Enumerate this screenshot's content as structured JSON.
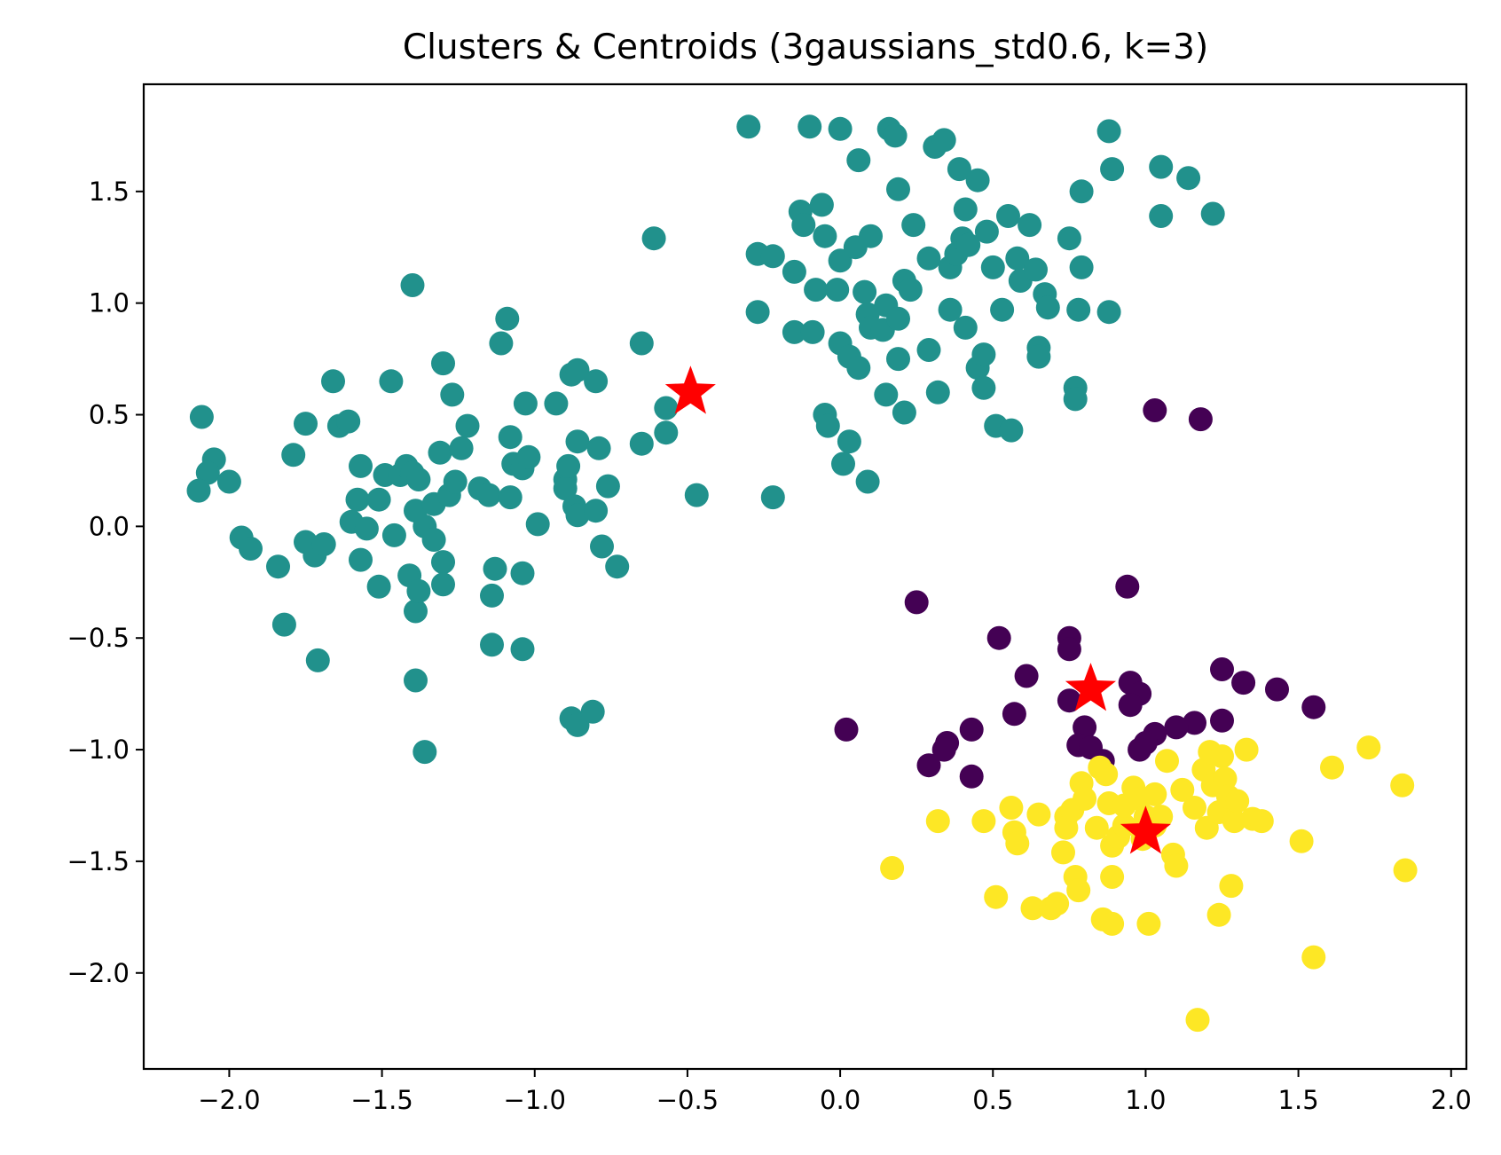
{
  "chart_data": {
    "type": "scatter",
    "title": "Clusters & Centroids (3gaussians_std0.6, k=3)",
    "xlabel": "",
    "ylabel": "",
    "xlim": [
      -2.28,
      2.05
    ],
    "ylim": [
      -2.43,
      1.98
    ],
    "xticks": [
      -2.0,
      -1.5,
      -1.0,
      -0.5,
      0.0,
      0.5,
      1.0,
      1.5,
      2.0
    ],
    "xtick_labels": [
      "−2.0",
      "−1.5",
      "−1.0",
      "−0.5",
      "0.0",
      "0.5",
      "1.0",
      "1.5",
      "2.0"
    ],
    "yticks": [
      -2.0,
      -1.5,
      -1.0,
      -0.5,
      0.0,
      0.5,
      1.0,
      1.5
    ],
    "ytick_labels": [
      "−2.0",
      "−1.5",
      "−1.0",
      "−0.5",
      "0.0",
      "0.5",
      "1.0",
      "1.5"
    ],
    "grid": false,
    "colors": {
      "cluster_0": "#440154",
      "cluster_1": "#21918c",
      "cluster_2": "#fde725",
      "centroid": "#ff0000"
    },
    "clusters": [
      {
        "color_key": "cluster_0",
        "points": [
          [
            1.03,
            0.52
          ],
          [
            1.18,
            0.48
          ],
          [
            0.94,
            -0.27
          ],
          [
            0.25,
            -0.34
          ],
          [
            0.52,
            -0.5
          ],
          [
            0.75,
            -0.5
          ],
          [
            0.75,
            -0.55
          ],
          [
            0.61,
            -0.67
          ],
          [
            0.57,
            -0.84
          ],
          [
            0.02,
            -0.91
          ],
          [
            0.75,
            -0.78
          ],
          [
            0.8,
            -0.9
          ],
          [
            0.78,
            -0.98
          ],
          [
            0.82,
            -0.99
          ],
          [
            0.95,
            -0.7
          ],
          [
            0.98,
            -0.75
          ],
          [
            0.95,
            -0.8
          ],
          [
            1.25,
            -0.64
          ],
          [
            1.32,
            -0.7
          ],
          [
            1.43,
            -0.73
          ],
          [
            1.55,
            -0.81
          ],
          [
            1.25,
            -0.87
          ],
          [
            1.16,
            -0.88
          ],
          [
            1.1,
            -0.9
          ],
          [
            1.03,
            -0.93
          ],
          [
            1.0,
            -0.97
          ],
          [
            0.98,
            -1.0
          ],
          [
            0.43,
            -0.91
          ],
          [
            0.35,
            -0.97
          ],
          [
            0.34,
            -1.0
          ],
          [
            0.29,
            -1.07
          ],
          [
            0.43,
            -1.12
          ],
          [
            0.86,
            -1.05
          ]
        ]
      },
      {
        "color_key": "cluster_1",
        "points": [
          [
            -2.09,
            0.49
          ],
          [
            -2.05,
            0.3
          ],
          [
            -2.07,
            0.24
          ],
          [
            -2.1,
            0.16
          ],
          [
            -2.0,
            0.2
          ],
          [
            -1.96,
            -0.05
          ],
          [
            -1.93,
            -0.1
          ],
          [
            -1.79,
            0.32
          ],
          [
            -1.75,
            0.46
          ],
          [
            -1.82,
            -0.44
          ],
          [
            -1.84,
            -0.18
          ],
          [
            -1.75,
            -0.07
          ],
          [
            -1.72,
            -0.13
          ],
          [
            -1.69,
            -0.08
          ],
          [
            -1.71,
            -0.6
          ],
          [
            -1.66,
            0.65
          ],
          [
            -1.64,
            0.45
          ],
          [
            -1.61,
            0.47
          ],
          [
            -1.57,
            0.27
          ],
          [
            -1.58,
            0.12
          ],
          [
            -1.6,
            0.02
          ],
          [
            -1.55,
            -0.01
          ],
          [
            -1.57,
            -0.15
          ],
          [
            -1.51,
            0.12
          ],
          [
            -1.51,
            -0.27
          ],
          [
            -1.49,
            0.23
          ],
          [
            -1.47,
            0.65
          ],
          [
            -1.46,
            -0.04
          ],
          [
            -1.44,
            0.23
          ],
          [
            -1.42,
            0.27
          ],
          [
            -1.4,
            0.24
          ],
          [
            -1.38,
            0.21
          ],
          [
            -1.41,
            -0.22
          ],
          [
            -1.39,
            -0.38
          ],
          [
            -1.38,
            -0.29
          ],
          [
            -1.39,
            -0.69
          ],
          [
            -1.36,
            -1.01
          ],
          [
            -1.4,
            1.08
          ],
          [
            -1.39,
            0.07
          ],
          [
            -1.36,
            0.0
          ],
          [
            -1.33,
            0.1
          ],
          [
            -1.33,
            -0.06
          ],
          [
            -1.31,
            0.33
          ],
          [
            -1.3,
            0.73
          ],
          [
            -1.3,
            -0.16
          ],
          [
            -1.3,
            -0.26
          ],
          [
            -1.28,
            0.14
          ],
          [
            -1.27,
            0.59
          ],
          [
            -1.26,
            0.2
          ],
          [
            -1.24,
            0.35
          ],
          [
            -1.22,
            0.45
          ],
          [
            -1.18,
            0.17
          ],
          [
            -1.15,
            0.14
          ],
          [
            -1.13,
            -0.19
          ],
          [
            -1.14,
            -0.31
          ],
          [
            -1.14,
            -0.53
          ],
          [
            -1.11,
            0.82
          ],
          [
            -1.09,
            0.93
          ],
          [
            -1.08,
            0.4
          ],
          [
            -1.07,
            0.28
          ],
          [
            -1.08,
            0.13
          ],
          [
            -1.04,
            0.26
          ],
          [
            -1.03,
            0.55
          ],
          [
            -1.04,
            -0.21
          ],
          [
            -1.04,
            -0.55
          ],
          [
            -1.02,
            0.31
          ],
          [
            -0.99,
            0.01
          ],
          [
            -0.93,
            0.55
          ],
          [
            -0.9,
            0.21
          ],
          [
            -0.9,
            0.17
          ],
          [
            -0.89,
            0.27
          ],
          [
            -0.87,
            0.09
          ],
          [
            -0.86,
            0.05
          ],
          [
            -0.86,
            0.38
          ],
          [
            -0.88,
            0.68
          ],
          [
            -0.86,
            0.7
          ],
          [
            -0.8,
            0.65
          ],
          [
            -0.8,
            0.07
          ],
          [
            -0.79,
            0.35
          ],
          [
            -0.78,
            -0.09
          ],
          [
            -0.76,
            0.18
          ],
          [
            -0.73,
            -0.18
          ],
          [
            -0.88,
            -0.86
          ],
          [
            -0.86,
            -0.89
          ],
          [
            -0.81,
            -0.83
          ],
          [
            -0.65,
            0.82
          ],
          [
            -0.65,
            0.37
          ],
          [
            -0.61,
            1.29
          ],
          [
            -0.57,
            0.53
          ],
          [
            -0.57,
            0.42
          ],
          [
            -0.47,
            0.14
          ],
          [
            -0.3,
            1.79
          ],
          [
            -0.27,
            1.22
          ],
          [
            -0.27,
            0.96
          ],
          [
            -0.22,
            1.21
          ],
          [
            -0.22,
            0.13
          ],
          [
            -0.15,
            1.14
          ],
          [
            -0.15,
            0.87
          ],
          [
            -0.13,
            1.41
          ],
          [
            -0.12,
            1.35
          ],
          [
            -0.1,
            1.79
          ],
          [
            -0.09,
            0.87
          ],
          [
            -0.08,
            1.06
          ],
          [
            -0.06,
            1.44
          ],
          [
            -0.05,
            1.3
          ],
          [
            -0.05,
            0.5
          ],
          [
            -0.04,
            0.45
          ],
          [
            -0.01,
            1.06
          ],
          [
            0.0,
            1.78
          ],
          [
            0.0,
            1.19
          ],
          [
            0.0,
            0.82
          ],
          [
            0.01,
            0.28
          ],
          [
            0.03,
            0.38
          ],
          [
            0.03,
            0.76
          ],
          [
            0.05,
            1.25
          ],
          [
            0.06,
            1.64
          ],
          [
            0.06,
            0.71
          ],
          [
            0.08,
            1.05
          ],
          [
            0.09,
            0.95
          ],
          [
            0.1,
            0.89
          ],
          [
            0.09,
            0.2
          ],
          [
            0.1,
            1.3
          ],
          [
            0.14,
            0.88
          ],
          [
            0.15,
            0.59
          ],
          [
            0.16,
            1.78
          ],
          [
            0.15,
            0.99
          ],
          [
            0.18,
            1.75
          ],
          [
            0.19,
            1.51
          ],
          [
            0.19,
            0.93
          ],
          [
            0.19,
            0.75
          ],
          [
            0.21,
            0.51
          ],
          [
            0.21,
            1.1
          ],
          [
            0.23,
            1.06
          ],
          [
            0.24,
            1.35
          ],
          [
            0.29,
            0.79
          ],
          [
            0.29,
            1.2
          ],
          [
            0.31,
            1.7
          ],
          [
            0.32,
            0.6
          ],
          [
            0.34,
            1.73
          ],
          [
            0.36,
            0.97
          ],
          [
            0.36,
            1.16
          ],
          [
            0.38,
            1.22
          ],
          [
            0.39,
            1.6
          ],
          [
            0.4,
            1.29
          ],
          [
            0.41,
            0.89
          ],
          [
            0.41,
            1.42
          ],
          [
            0.42,
            1.26
          ],
          [
            0.45,
            1.55
          ],
          [
            0.45,
            0.71
          ],
          [
            0.47,
            0.77
          ],
          [
            0.47,
            0.62
          ],
          [
            0.48,
            1.32
          ],
          [
            0.5,
            1.16
          ],
          [
            0.51,
            0.45
          ],
          [
            0.53,
            0.97
          ],
          [
            0.55,
            1.39
          ],
          [
            0.56,
            0.43
          ],
          [
            0.58,
            1.2
          ],
          [
            0.59,
            1.1
          ],
          [
            0.62,
            1.35
          ],
          [
            0.64,
            1.15
          ],
          [
            0.65,
            0.8
          ],
          [
            0.65,
            0.76
          ],
          [
            0.67,
            1.04
          ],
          [
            0.68,
            0.98
          ],
          [
            0.75,
            1.29
          ],
          [
            0.77,
            0.62
          ],
          [
            0.77,
            0.57
          ],
          [
            0.78,
            0.97
          ],
          [
            0.79,
            1.16
          ],
          [
            0.79,
            1.5
          ],
          [
            0.88,
            1.77
          ],
          [
            0.89,
            1.6
          ],
          [
            0.88,
            0.96
          ],
          [
            1.05,
            1.39
          ],
          [
            1.05,
            1.61
          ],
          [
            1.14,
            1.56
          ],
          [
            1.22,
            1.4
          ]
        ]
      },
      {
        "color_key": "cluster_2",
        "points": [
          [
            0.17,
            -1.53
          ],
          [
            0.32,
            -1.32
          ],
          [
            0.47,
            -1.32
          ],
          [
            0.51,
            -1.66
          ],
          [
            0.56,
            -1.26
          ],
          [
            0.57,
            -1.37
          ],
          [
            0.58,
            -1.42
          ],
          [
            0.63,
            -1.71
          ],
          [
            0.65,
            -1.29
          ],
          [
            0.69,
            -1.71
          ],
          [
            0.71,
            -1.69
          ],
          [
            0.73,
            -1.46
          ],
          [
            0.74,
            -1.3
          ],
          [
            0.74,
            -1.35
          ],
          [
            0.76,
            -1.27
          ],
          [
            0.77,
            -1.57
          ],
          [
            0.78,
            -1.63
          ],
          [
            0.79,
            -1.15
          ],
          [
            0.8,
            -1.22
          ],
          [
            0.84,
            -1.35
          ],
          [
            0.85,
            -1.08
          ],
          [
            0.86,
            -1.76
          ],
          [
            0.87,
            -1.11
          ],
          [
            0.88,
            -1.24
          ],
          [
            0.89,
            -1.78
          ],
          [
            0.89,
            -1.43
          ],
          [
            0.89,
            -1.57
          ],
          [
            0.91,
            -1.39
          ],
          [
            0.93,
            -1.34
          ],
          [
            0.93,
            -1.25
          ],
          [
            0.96,
            -1.17
          ],
          [
            0.98,
            -1.22
          ],
          [
            0.99,
            -1.4
          ],
          [
            1.0,
            -1.3
          ],
          [
            1.01,
            -1.78
          ],
          [
            1.03,
            -1.2
          ],
          [
            1.03,
            -1.34
          ],
          [
            1.05,
            -1.3
          ],
          [
            1.07,
            -1.05
          ],
          [
            1.09,
            -1.47
          ],
          [
            1.1,
            -1.52
          ],
          [
            1.12,
            -1.18
          ],
          [
            1.16,
            -1.26
          ],
          [
            1.17,
            -2.21
          ],
          [
            1.19,
            -1.09
          ],
          [
            1.2,
            -1.35
          ],
          [
            1.21,
            -1.01
          ],
          [
            1.22,
            -1.16
          ],
          [
            1.24,
            -1.28
          ],
          [
            1.24,
            -1.74
          ],
          [
            1.25,
            -1.03
          ],
          [
            1.26,
            -1.13
          ],
          [
            1.27,
            -1.21
          ],
          [
            1.28,
            -1.61
          ],
          [
            1.29,
            -1.32
          ],
          [
            1.3,
            -1.23
          ],
          [
            1.33,
            -1.0
          ],
          [
            1.35,
            -1.31
          ],
          [
            1.38,
            -1.32
          ],
          [
            1.51,
            -1.41
          ],
          [
            1.55,
            -1.93
          ],
          [
            1.61,
            -1.08
          ],
          [
            1.73,
            -0.99
          ],
          [
            1.84,
            -1.16
          ],
          [
            1.85,
            -1.54
          ]
        ]
      }
    ],
    "centroids": [
      [
        -0.49,
        0.6
      ],
      [
        0.82,
        -0.73
      ],
      [
        1.0,
        -1.37
      ]
    ]
  }
}
